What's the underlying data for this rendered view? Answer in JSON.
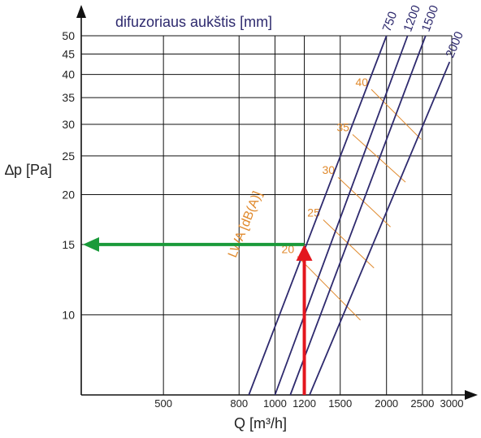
{
  "chart_data": {
    "type": "line",
    "title": "difuzoriaus aukštis [mm]",
    "xlabel": "Q [m³/h]",
    "ylabel": "∆p [Pa]",
    "x_scale": "log",
    "y_scale": "log",
    "xlim": [
      300,
      3000
    ],
    "ylim": [
      6.3,
      50
    ],
    "x_ticks": [
      500,
      800,
      1000,
      1200,
      1500,
      2000,
      2500,
      3000
    ],
    "x_tick_labels": [
      "500",
      "800",
      "1000",
      "1200",
      "1500",
      "2000",
      "2500",
      "3000"
    ],
    "y_ticks": [
      10,
      15,
      20,
      25,
      30,
      35,
      40,
      45,
      50
    ],
    "y_tick_labels": [
      "10",
      "15",
      "20",
      "25",
      "30",
      "35",
      "40",
      "45",
      "50"
    ],
    "grid": true,
    "series": [
      {
        "name": "750",
        "color": "#2e2a6e",
        "x": [
          850,
          2000
        ],
        "y": [
          6.3,
          50
        ]
      },
      {
        "name": "1200",
        "color": "#2e2a6e",
        "x": [
          1000,
          2280
        ],
        "y": [
          6.3,
          50
        ]
      },
      {
        "name": "1500",
        "color": "#2e2a6e",
        "x": [
          1100,
          2550
        ],
        "y": [
          6.3,
          50
        ]
      },
      {
        "name": "2000",
        "color": "#2e2a6e",
        "x": [
          1240,
          2960
        ],
        "y": [
          6.3,
          43
        ]
      }
    ],
    "sound_label": "LWA [dB(A)]",
    "sound_lines": [
      {
        "label": "20",
        "x": [
          1150,
          1700
        ],
        "y": [
          14,
          9.7
        ]
      },
      {
        "label": "25",
        "x": [
          1350,
          1850
        ],
        "y": [
          17.3,
          13.1
        ]
      },
      {
        "label": "30",
        "x": [
          1480,
          2050
        ],
        "y": [
          22.1,
          16.6
        ]
      },
      {
        "label": "35",
        "x": [
          1620,
          2250
        ],
        "y": [
          28.3,
          21.5
        ]
      },
      {
        "label": "40",
        "x": [
          1820,
          2480
        ],
        "y": [
          36.7,
          27.5
        ]
      }
    ],
    "sound_color": "#e08a2e",
    "example": {
      "q": 1200,
      "dp": 15,
      "q_arrow_color": "#e3161e",
      "dp_arrow_color": "#1a9a3a"
    }
  }
}
